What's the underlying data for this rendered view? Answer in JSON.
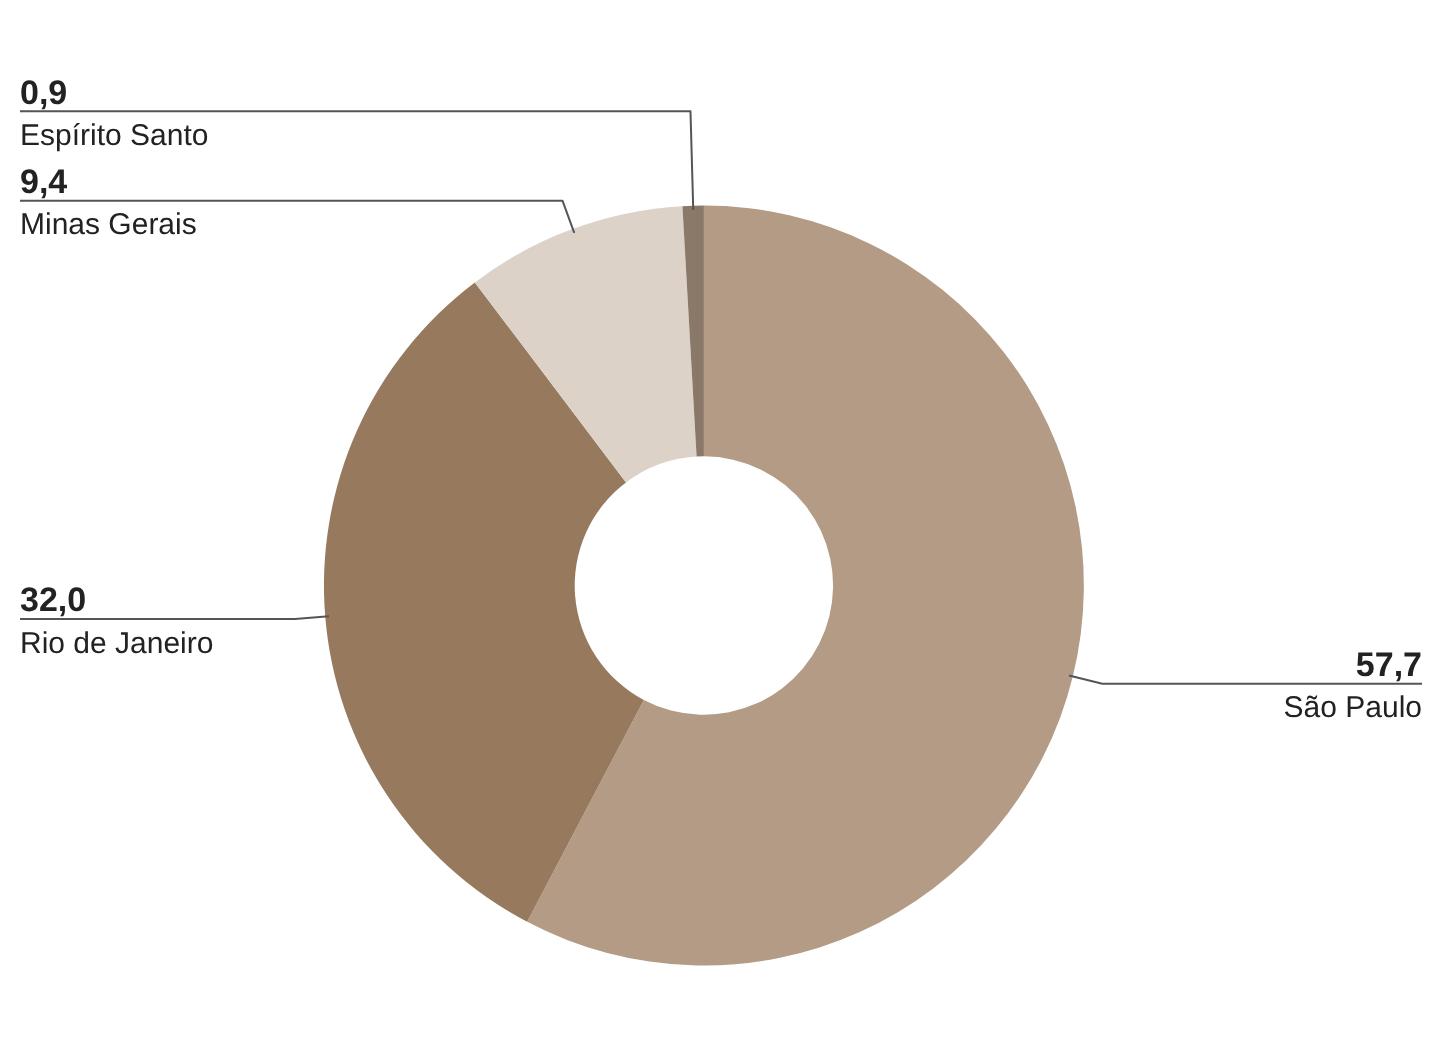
{
  "chart_data": {
    "type": "donut",
    "categories": [
      "São Paulo",
      "Rio de Janeiro",
      "Minas Gerais",
      "Espírito Santo"
    ],
    "values": [
      57.7,
      32.0,
      9.4,
      0.9
    ],
    "colors": [
      "#b39b85",
      "#977a5e",
      "#dcd2c8",
      "#8a7868"
    ],
    "value_labels": [
      "57,7",
      "32,0",
      "9,4",
      "0,9"
    ]
  }
}
